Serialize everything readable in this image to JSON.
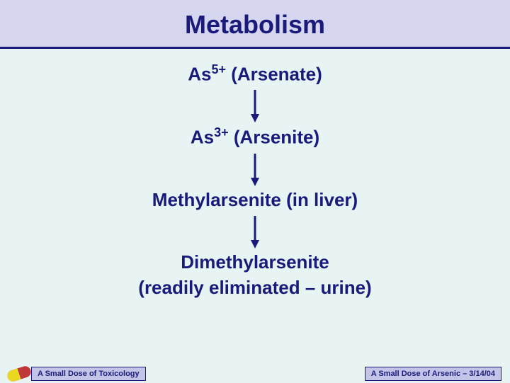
{
  "colors": {
    "header_bg": "#d6d6f0",
    "title_color": "#1a1a7a",
    "divider_color": "#1a1a7a",
    "content_bg": "#e8f4f4",
    "text_color": "#1a1a7a",
    "arrow_color": "#1a1a7a",
    "footer_box_bg": "#c4c4e8",
    "footer_box_border": "#1a1a7a",
    "footer_text": "#1a1a7a",
    "pill_left": "#e8d820",
    "pill_right": "#c03838"
  },
  "title": "Metabolism",
  "flow": {
    "steps": [
      {
        "prefix": "As",
        "sup": "5+",
        "label": " (Arsenate)"
      },
      {
        "prefix": "As",
        "sup": "3+",
        "label": " (Arsenite)"
      },
      {
        "prefix": "",
        "sup": "",
        "label": "Methylarsenite (in liver)"
      },
      {
        "prefix": "",
        "sup": "",
        "label": "Dimethylarsenite",
        "sub": "(readily eliminated – urine)"
      }
    ],
    "arrow": {
      "length": 44,
      "stroke_width": 3,
      "head_w": 12,
      "head_h": 12
    }
  },
  "typography": {
    "title_fontsize": 36,
    "step_fontsize": 26,
    "sup_fontsize": 18,
    "footer_fontsize": 11
  },
  "footer": {
    "left": "A Small Dose of Toxicology",
    "right": "A Small Dose of Arsenic – 3/14/04"
  }
}
